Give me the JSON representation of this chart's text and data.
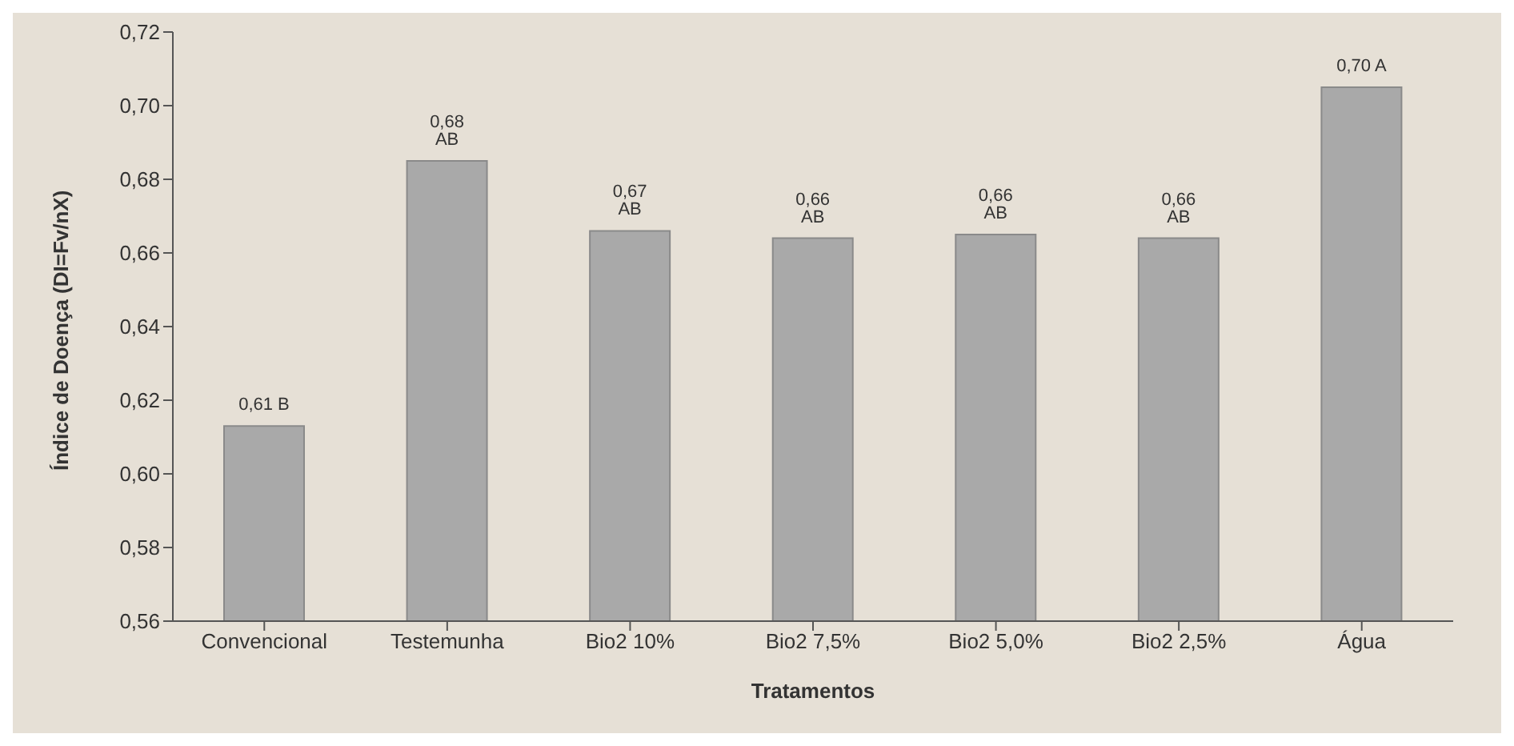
{
  "chart_data": {
    "type": "bar",
    "xlabel": "Tratamentos",
    "ylabel": "Índice de Doença (DI=Fv/nX)",
    "categories": [
      "Convencional",
      "Testemunha",
      "Bio2 10%",
      "Bio2 7,5%",
      "Bio2 5,0%",
      "Bio2 2,5%",
      "Água"
    ],
    "values": [
      0.613,
      0.685,
      0.666,
      0.664,
      0.665,
      0.664,
      0.705
    ],
    "value_labels": [
      "0,61 B",
      "0,68 AB",
      "0,67 AB",
      "0,66 AB",
      "0,66 AB",
      "0,66 AB",
      "0,70 A"
    ],
    "color": "#a9a9a9",
    "ylim": [
      0.56,
      0.72
    ],
    "yticks": [
      {
        "value": 0.56,
        "label": "0,56"
      },
      {
        "value": 0.58,
        "label": "0,58"
      },
      {
        "value": 0.6,
        "label": "0,60"
      },
      {
        "value": 0.62,
        "label": "0,62"
      },
      {
        "value": 0.64,
        "label": "0,64"
      },
      {
        "value": 0.66,
        "label": "0,66"
      },
      {
        "value": 0.68,
        "label": "0,68"
      },
      {
        "value": 0.7,
        "label": "0,70"
      },
      {
        "value": 0.72,
        "label": "0,72"
      }
    ],
    "grid": false,
    "legend": false
  }
}
